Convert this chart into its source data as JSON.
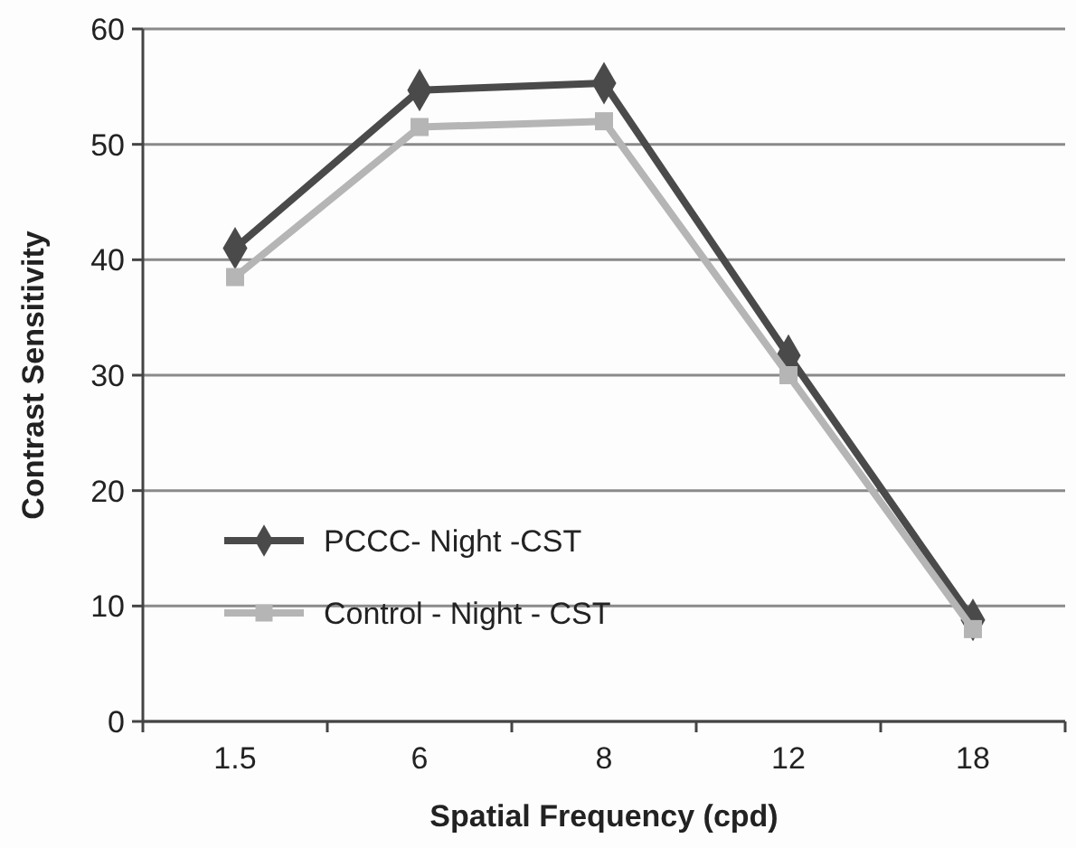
{
  "chart_data": {
    "type": "line",
    "xlabel": "Spatial Frequency (cpd)",
    "ylabel": "Contrast Sensitivity",
    "categories": [
      "1.5",
      "6",
      "8",
      "12",
      "18"
    ],
    "series": [
      {
        "name": "PCCC- Night -CST",
        "color": "#4a4a4a",
        "marker": "diamond",
        "values": [
          41,
          54.7,
          55.3,
          31.7,
          8.8
        ]
      },
      {
        "name": "Control - Night - CST",
        "color": "#b5b5b5",
        "marker": "square",
        "values": [
          38.5,
          51.5,
          52,
          30,
          8
        ]
      }
    ],
    "ylim": [
      0,
      60
    ],
    "yticks": [
      0,
      10,
      20,
      30,
      40,
      50,
      60
    ],
    "grid": "y",
    "legend": "bottom left",
    "line_style": "solid"
  }
}
